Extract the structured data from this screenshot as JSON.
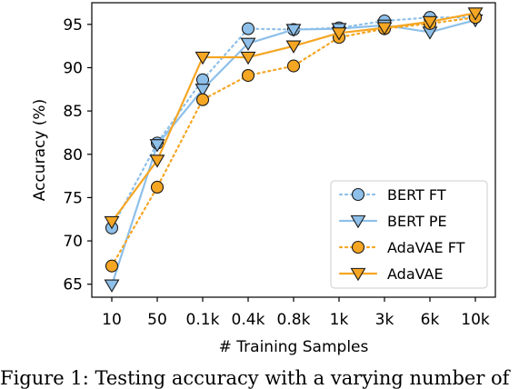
{
  "chart_data": {
    "type": "line",
    "categories": [
      "10",
      "50",
      "0.1k",
      "0.4k",
      "0.8k",
      "1k",
      "3k",
      "6k",
      "10k"
    ],
    "xlabel": "# Training Samples",
    "ylabel": "Accuracy (%)",
    "ylim": [
      63.5,
      97.5
    ],
    "yticks": [
      65,
      70,
      75,
      80,
      85,
      90,
      95
    ],
    "grid": false,
    "legend_position": "lower-right",
    "series": [
      {
        "name": "BERT FT",
        "values": [
          71.5,
          81.3,
          88.6,
          94.5,
          94.4,
          94.6,
          95.4,
          95.8,
          95.8
        ],
        "color": "#8ec0ea",
        "linestyle": "dotted",
        "marker": "circle"
      },
      {
        "name": "BERT PE",
        "values": [
          64.9,
          81.1,
          87.5,
          92.8,
          94.4,
          94.5,
          94.9,
          94.1,
          95.5
        ],
        "color": "#8ec0ea",
        "linestyle": "solid",
        "marker": "triangle-down"
      },
      {
        "name": "AdaVAE FT",
        "values": [
          67.1,
          76.2,
          86.3,
          89.1,
          90.2,
          93.5,
          94.5,
          95.1,
          95.8
        ],
        "color": "#f5a623",
        "linestyle": "dotted",
        "marker": "circle"
      },
      {
        "name": "AdaVAE",
        "values": [
          72.2,
          79.3,
          91.2,
          91.2,
          92.5,
          94.0,
          94.6,
          95.3,
          96.3
        ],
        "color": "#f5a623",
        "linestyle": "solid",
        "marker": "triangle-down"
      }
    ]
  },
  "caption": "Figure 1:  Testing accuracy with a varying number of"
}
